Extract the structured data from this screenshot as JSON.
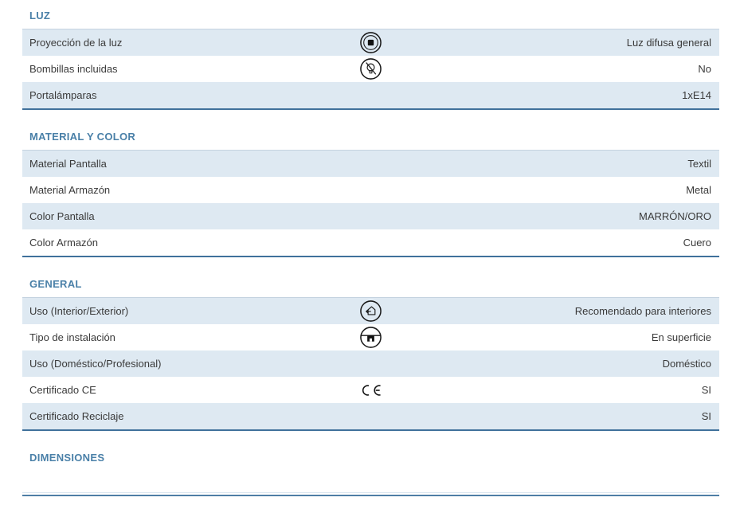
{
  "colors": {
    "accent": "#4a80a8",
    "row_alt": "#dee9f2",
    "section_border": "#40719b",
    "header_underline": "#c4d3e0",
    "text": "#3a3a3a"
  },
  "sections": [
    {
      "title": "LUZ",
      "rows": [
        {
          "label": "Proyección de la luz",
          "icon": "diffuse-light-icon",
          "value": "Luz difusa general"
        },
        {
          "label": "Bombillas incluidas",
          "icon": "no-bulb-icon",
          "value": "No"
        },
        {
          "label": "Portalámparas",
          "icon": null,
          "value": "1xE14"
        }
      ]
    },
    {
      "title": "MATERIAL Y COLOR",
      "rows": [
        {
          "label": "Material Pantalla",
          "icon": null,
          "value": "Textil"
        },
        {
          "label": "Material Armazón",
          "icon": null,
          "value": "Metal"
        },
        {
          "label": "Color Pantalla",
          "icon": null,
          "value": "MARRÓN/ORO"
        },
        {
          "label": "Color Armazón",
          "icon": null,
          "value": "Cuero"
        }
      ]
    },
    {
      "title": "GENERAL",
      "rows": [
        {
          "label": "Uso (Interior/Exterior)",
          "icon": "indoor-use-icon",
          "value": "Recomendado para interiores"
        },
        {
          "label": "Tipo de instalación",
          "icon": "surface-mount-icon",
          "value": "En superficie"
        },
        {
          "label": "Uso (Doméstico/Profesional)",
          "icon": null,
          "value": "Doméstico"
        },
        {
          "label": "Certificado CE",
          "icon": "ce-mark-icon",
          "value": "SI"
        },
        {
          "label": "Certificado Reciclaje",
          "icon": null,
          "value": "SI"
        }
      ]
    },
    {
      "title": "DIMENSIONES",
      "rows": []
    }
  ]
}
